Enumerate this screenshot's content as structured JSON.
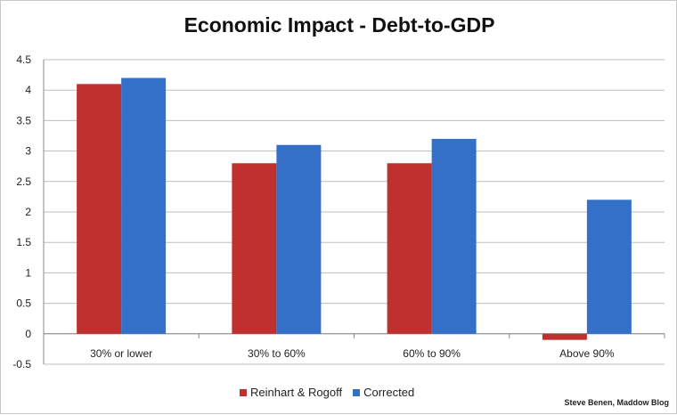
{
  "chart_data": {
    "type": "bar",
    "title": "Economic Impact - Debt-to-GDP",
    "categories": [
      "30% or lower",
      "30% to 60%",
      "60% to 90%",
      "Above 90%"
    ],
    "series": [
      {
        "name": "Reinhart & Rogoff",
        "color": "#c0302e",
        "values": [
          4.1,
          2.8,
          2.8,
          -0.1
        ]
      },
      {
        "name": "Corrected",
        "color": "#3470c8",
        "values": [
          4.2,
          3.1,
          3.2,
          2.2
        ]
      }
    ],
    "ylim": [
      -0.5,
      4.5
    ],
    "yticks": [
      "4.5",
      "4",
      "3.5",
      "3",
      "2.5",
      "2",
      "1.5",
      "1",
      "0.5",
      "0",
      "-0.5"
    ],
    "grid": true,
    "legend": "bottom",
    "xlabel": "",
    "ylabel": ""
  },
  "credit": "Steve Benen, Maddow Blog"
}
